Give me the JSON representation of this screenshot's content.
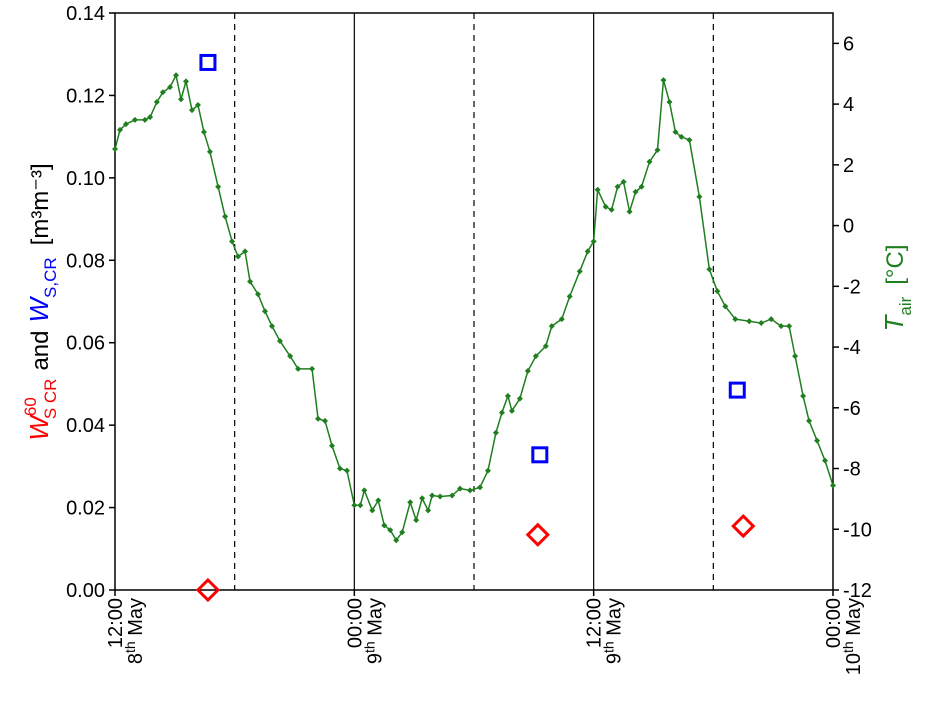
{
  "chart_data": {
    "type": "line",
    "xlim": [
      0,
      36
    ],
    "xticks": [
      {
        "value": 0,
        "label": [
          "12:00",
          "8th May"
        ]
      },
      {
        "value": 12,
        "label": [
          "00:00",
          "9th May"
        ]
      },
      {
        "value": 24,
        "label": [
          "12:00",
          "9th May"
        ]
      },
      {
        "value": 36,
        "label": [
          "00:00",
          "10th May"
        ]
      }
    ],
    "vlines": [
      {
        "value": 6,
        "style": "dashed"
      },
      {
        "value": 12,
        "style": "solid"
      },
      {
        "value": 18,
        "style": "dashed"
      },
      {
        "value": 24,
        "style": "solid"
      },
      {
        "value": 30,
        "style": "dashed"
      }
    ],
    "ylim": [
      0,
      0.14
    ],
    "yticks": [
      {
        "value": 0,
        "label": "0.00"
      },
      {
        "value": 0.02,
        "label": "0.02"
      },
      {
        "value": 0.04,
        "label": "0.04"
      },
      {
        "value": 0.06,
        "label": "0.06"
      },
      {
        "value": 0.08,
        "label": "0.08"
      },
      {
        "value": 0.1,
        "label": "0.10"
      },
      {
        "value": 0.12,
        "label": "0.12"
      },
      {
        "value": 0.14,
        "label": "0.14"
      }
    ],
    "y2lim": [
      -12,
      7
    ],
    "y2ticks": [
      -12,
      -10,
      -8,
      -6,
      -4,
      -2,
      0,
      2,
      4,
      6
    ],
    "y_label": {
      "red_symbol": "W",
      "red_sup": "60",
      "red_sub": "S CR",
      "joiner": "and",
      "blue_symbol": "W",
      "blue_sub": "S,CR",
      "unit": "[m³m⁻³]"
    },
    "y2_label": {
      "symbol": "T",
      "sub": "air",
      "unit": "[°C]"
    },
    "label_colors": {
      "red": "#ff0000",
      "blue": "#0000ff",
      "green": "#1f7f1f"
    },
    "series": [
      {
        "axis": "y2",
        "color": "#1f7f1f",
        "marker": "small-diamond",
        "x": [
          0,
          0.25,
          0.55,
          1.0,
          1.5,
          1.76,
          2.1,
          2.4,
          2.76,
          3.06,
          3.31,
          3.56,
          3.86,
          4.16,
          4.46,
          4.76,
          5.17,
          5.52,
          5.87,
          6.17,
          6.52,
          6.77,
          7.17,
          7.52,
          7.87,
          8.27,
          8.78,
          9.18,
          9.88,
          10.18,
          10.53,
          10.88,
          11.28,
          11.63,
          12.0,
          12.3,
          12.5,
          12.9,
          13.2,
          13.5,
          13.8,
          14.1,
          14.4,
          14.8,
          15.1,
          15.4,
          15.7,
          15.9,
          16.3,
          16.9,
          17.3,
          17.8,
          18.3,
          18.7,
          19.1,
          19.4,
          19.7,
          19.9,
          20.3,
          20.7,
          21.1,
          21.6,
          21.9,
          22.4,
          22.8,
          23.3,
          23.7,
          24.0,
          24.2,
          24.6,
          24.9,
          25.2,
          25.5,
          25.8,
          26.1,
          26.4,
          26.8,
          27.2,
          27.5,
          27.8,
          28.1,
          28.4,
          28.8,
          29.3,
          29.8,
          30.2,
          30.6,
          31.1,
          31.8,
          32.4,
          32.9,
          33.4,
          33.8,
          34.1,
          34.5,
          34.8,
          35.2,
          35.6,
          36.0
        ],
        "values": [
          2.52,
          3.15,
          3.34,
          3.48,
          3.48,
          3.57,
          4.07,
          4.39,
          4.56,
          4.95,
          4.16,
          4.75,
          3.8,
          3.97,
          3.08,
          2.43,
          1.28,
          0.3,
          -0.52,
          -1.02,
          -0.85,
          -1.84,
          -2.26,
          -2.82,
          -3.31,
          -3.8,
          -4.3,
          -4.72,
          -4.72,
          -6.36,
          -6.43,
          -7.25,
          -8.0,
          -8.07,
          -9.21,
          -9.21,
          -8.72,
          -9.38,
          -9.05,
          -9.87,
          -10.03,
          -10.36,
          -10.1,
          -9.11,
          -9.7,
          -8.98,
          -9.38,
          -8.89,
          -8.92,
          -8.89,
          -8.66,
          -8.72,
          -8.62,
          -8.07,
          -6.82,
          -6.16,
          -5.61,
          -6.1,
          -5.7,
          -4.79,
          -4.3,
          -3.97,
          -3.31,
          -3.08,
          -2.33,
          -1.51,
          -0.85,
          -0.52,
          1.18,
          0.62,
          0.52,
          1.28,
          1.44,
          0.46,
          1.11,
          1.28,
          2.1,
          2.49,
          4.79,
          4.07,
          3.08,
          2.92,
          2.82,
          0.95,
          -1.44,
          -2.16,
          -2.66,
          -3.08,
          -3.15,
          -3.21,
          -3.08,
          -3.31,
          -3.31,
          -4.3,
          -5.61,
          -6.43,
          -7.08,
          -7.74,
          -8.56
        ]
      },
      {
        "axis": "y",
        "color": "#0000ff",
        "marker": "square",
        "x": [
          4.66,
          21.3,
          31.2
        ],
        "values": [
          0.128,
          0.0328,
          0.0485
        ]
      },
      {
        "axis": "y",
        "color": "#ff0000",
        "marker": "diamond",
        "x": [
          4.66,
          21.2,
          31.5
        ],
        "values": [
          0.0,
          0.0134,
          0.0155
        ]
      }
    ]
  }
}
